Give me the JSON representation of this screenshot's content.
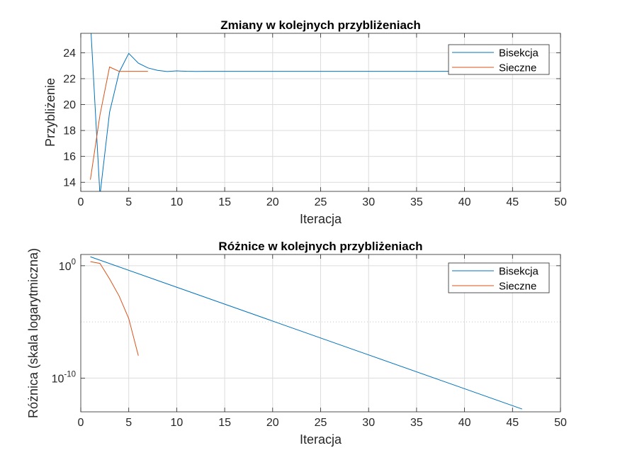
{
  "colors": {
    "bisekcja": "#0072BD",
    "sieczne": "#D95319",
    "grid": "#dcdcdc",
    "axis": "#262626"
  },
  "chart_data": [
    {
      "type": "line",
      "title": "Zmiany w kolejnych przybliżeniach",
      "xlabel": "Iteracja",
      "ylabel": "Przybliżenie",
      "xlim": [
        0,
        50
      ],
      "ylim": [
        13.3,
        25.5
      ],
      "yscale": "linear",
      "grid": true,
      "legend_location": "top-right",
      "x_ticks": [
        "0",
        "5",
        "10",
        "15",
        "20",
        "25",
        "30",
        "35",
        "40",
        "45",
        "50"
      ],
      "y_ticks": [
        "14",
        "16",
        "18",
        "20",
        "22",
        "24"
      ],
      "series": [
        {
          "name": "Bisekcja",
          "color": "#0072BD",
          "x": [
            1,
            2,
            3,
            4,
            5,
            6,
            7,
            8,
            9,
            10,
            11,
            12,
            13,
            14,
            15,
            16,
            17,
            18,
            19,
            20,
            21,
            22,
            23,
            24,
            25,
            26,
            27,
            28,
            29,
            30,
            31,
            32,
            33,
            34,
            35,
            36,
            37,
            38,
            39,
            40,
            41,
            42,
            43,
            44,
            45,
            46
          ],
          "y": [
            26.5,
            13.0,
            19.4,
            22.5,
            23.95,
            23.2,
            22.83,
            22.64,
            22.55,
            22.6,
            22.57,
            22.56,
            22.565,
            22.565,
            22.565,
            22.565,
            22.565,
            22.565,
            22.565,
            22.565,
            22.565,
            22.565,
            22.565,
            22.565,
            22.565,
            22.565,
            22.565,
            22.565,
            22.565,
            22.565,
            22.565,
            22.565,
            22.565,
            22.565,
            22.565,
            22.565,
            22.565,
            22.565,
            22.565,
            22.565,
            22.565,
            22.565,
            22.565,
            22.565,
            22.565,
            22.565
          ]
        },
        {
          "name": "Sieczne",
          "color": "#D95319",
          "x": [
            1,
            2,
            3,
            4,
            5,
            6,
            7
          ],
          "y": [
            14.2,
            19.2,
            22.9,
            22.56,
            22.565,
            22.565,
            22.565
          ]
        }
      ]
    },
    {
      "type": "line",
      "title": "Różnice w kolejnych przybliżeniach",
      "xlabel": "Iteracja",
      "ylabel": "Różnica (skala logarytmiczna)",
      "xlim": [
        0,
        50
      ],
      "ylim": [
        1e-13,
        10
      ],
      "yscale": "log",
      "grid": true,
      "legend_location": "top-right",
      "x_ticks": [
        "0",
        "5",
        "10",
        "15",
        "20",
        "25",
        "30",
        "35",
        "40",
        "45",
        "50"
      ],
      "y_ticks": [
        {
          "base": "10",
          "exp": "0",
          "value": 1
        },
        {
          "base": "10",
          "exp": "-10",
          "value": 1e-10
        }
      ],
      "series": [
        {
          "name": "Bisekcja",
          "color": "#0072BD",
          "x": [
            1,
            46
          ],
          "y": [
            6.25,
            1.776e-13
          ]
        },
        {
          "name": "Sieczne",
          "color": "#D95319",
          "x": [
            1,
            2,
            3,
            4,
            5,
            6
          ],
          "y": [
            2.3,
            1.6,
            0.068,
            0.002,
            2e-05,
            1e-08
          ]
        }
      ]
    }
  ]
}
